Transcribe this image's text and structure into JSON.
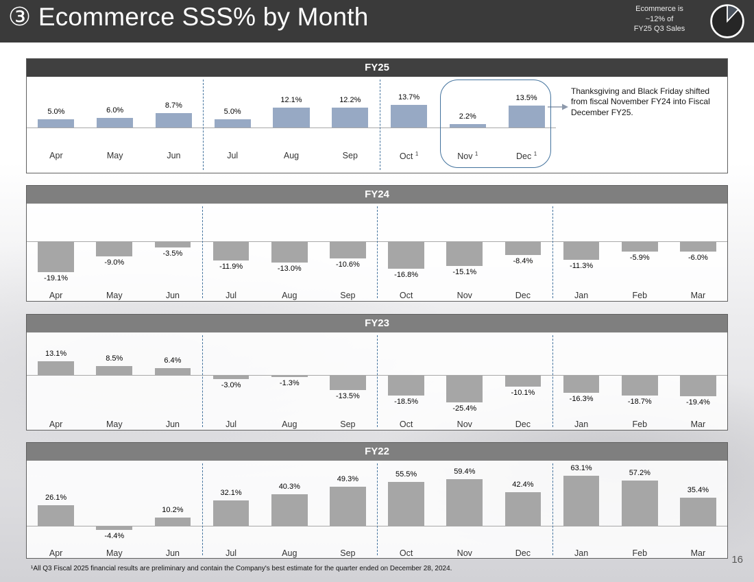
{
  "slide": {
    "title": "③ Ecommerce SSS% by Month",
    "corner_note_lines": [
      "Ecommerce is",
      "~12% of",
      "FY25 Q3 Sales"
    ],
    "pie_icon": "pie-chart-12-percent-slice",
    "footnote": "¹All Q3 Fiscal 2025 financial results are preliminary and contain the Company's best estimate for the quarter ended on December 28, 2024.",
    "page_number": "16"
  },
  "colors": {
    "slide_header_bg": "#3a3a3a",
    "fy25_header_bg": "#404040",
    "year_header_bg": "#7f7f7f",
    "fy25_bar": "#97a9c4",
    "gray_bar": "#a6a6a6",
    "separator": "#41719c",
    "highlight_border": "#41719c",
    "arrow": "#8d99ab"
  },
  "chart_data": [
    {
      "type": "bar",
      "title": "FY25",
      "categories": [
        "Apr",
        "May",
        "Jun",
        "Jul",
        "Aug",
        "Sep",
        "Oct",
        "Nov",
        "Dec"
      ],
      "superscripts": {
        "Oct": "1",
        "Nov": "1",
        "Dec": "1"
      },
      "values": [
        5.0,
        6.0,
        8.7,
        5.0,
        12.1,
        12.2,
        13.7,
        2.2,
        13.5
      ],
      "labels": [
        "5.0%",
        "6.0%",
        "8.7%",
        "5.0%",
        "12.1%",
        "12.2%",
        "13.7%",
        "2.2%",
        "13.5%"
      ],
      "ylim": [
        0,
        30
      ],
      "grid": false,
      "quarter_breaks_after": [
        2,
        5
      ],
      "highlight": {
        "months": [
          "Nov",
          "Dec"
        ],
        "note": "Thanksgiving and Black Friday shifted from fiscal November FY24 into Fiscal December FY25."
      }
    },
    {
      "type": "bar",
      "title": "FY24",
      "categories": [
        "Apr",
        "May",
        "Jun",
        "Jul",
        "Aug",
        "Sep",
        "Oct",
        "Nov",
        "Dec",
        "Jan",
        "Feb",
        "Mar"
      ],
      "values": [
        -19.1,
        -9.0,
        -3.5,
        -11.9,
        -13.0,
        -10.6,
        -16.8,
        -15.1,
        -8.4,
        -11.3,
        -5.9,
        -6.0
      ],
      "labels": [
        "-19.1%",
        "-9.0%",
        "-3.5%",
        "-11.9%",
        "-13.0%",
        "-10.6%",
        "-16.8%",
        "-15.1%",
        "-8.4%",
        "-11.3%",
        "-5.9%",
        "-6.0%"
      ],
      "ylim": [
        -24,
        0
      ],
      "grid": false,
      "quarter_breaks_after": [
        2,
        5,
        8
      ]
    },
    {
      "type": "bar",
      "title": "FY23",
      "categories": [
        "Apr",
        "May",
        "Jun",
        "Jul",
        "Aug",
        "Sep",
        "Oct",
        "Nov",
        "Dec",
        "Jan",
        "Feb",
        "Mar"
      ],
      "values": [
        13.1,
        8.5,
        6.4,
        -3.0,
        -1.3,
        -13.5,
        -18.5,
        -25.4,
        -10.1,
        -16.3,
        -18.7,
        -19.4
      ],
      "labels": [
        "13.1%",
        "8.5%",
        "6.4%",
        "-3.0%",
        "-1.3%",
        "-13.5%",
        "-18.5%",
        "-25.4%",
        "-10.1%",
        "-16.3%",
        "-18.7%",
        "-19.4%"
      ],
      "ylim": [
        -33,
        20
      ],
      "grid": false,
      "quarter_breaks_after": [
        2,
        5,
        8
      ]
    },
    {
      "type": "bar",
      "title": "FY22",
      "categories": [
        "Apr",
        "May",
        "Jun",
        "Jul",
        "Aug",
        "Sep",
        "Oct",
        "Nov",
        "Dec",
        "Jan",
        "Feb",
        "Mar"
      ],
      "values": [
        26.1,
        -4.4,
        10.2,
        32.1,
        40.3,
        49.3,
        55.5,
        59.4,
        42.4,
        63.1,
        57.2,
        35.4
      ],
      "labels": [
        "26.1%",
        "-4.4%",
        "10.2%",
        "32.1%",
        "40.3%",
        "49.3%",
        "55.5%",
        "59.4%",
        "42.4%",
        "63.1%",
        "57.2%",
        "35.4%"
      ],
      "ylim": [
        -43,
        83
      ],
      "grid": false,
      "quarter_breaks_after": [
        2,
        5,
        8
      ]
    }
  ]
}
